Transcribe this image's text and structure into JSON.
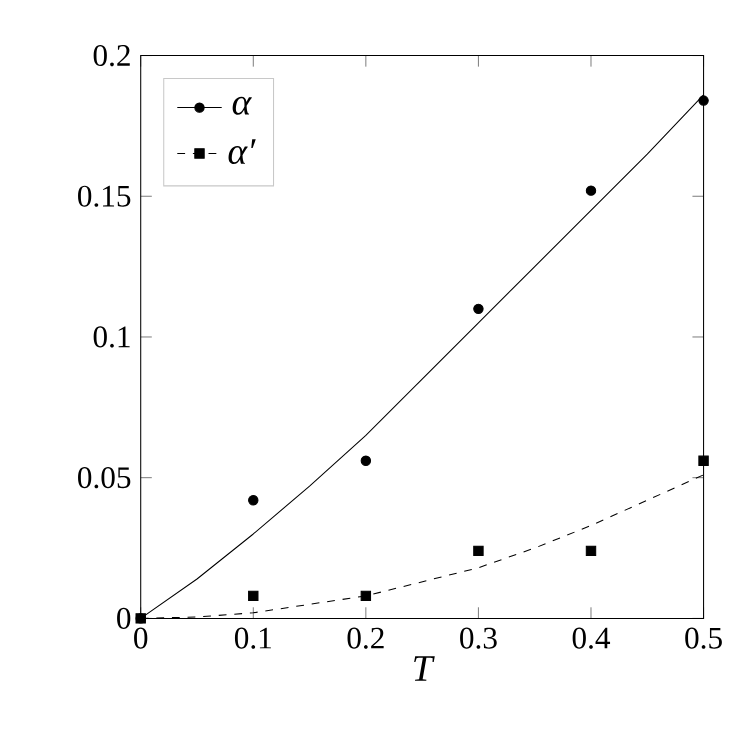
{
  "chart_data": {
    "type": "scatter",
    "xlabel": "T",
    "xlim": [
      0,
      0.5
    ],
    "ylim": [
      0,
      0.2
    ],
    "xticks": [
      0,
      0.1,
      0.2,
      0.3,
      0.4,
      0.5
    ],
    "yticks": [
      0,
      0.05,
      0.1,
      0.15,
      0.2
    ],
    "legend": "top left",
    "grid": false,
    "series": [
      {
        "type": "line",
        "color": "#000000",
        "line_style": "solid",
        "marker": "none",
        "x": [
          0,
          0.05,
          0.1,
          0.15,
          0.2,
          0.25,
          0.3,
          0.35,
          0.4,
          0.45,
          0.5
        ],
        "values": [
          0,
          0.014,
          0.03,
          0.047,
          0.065,
          0.085,
          0.105,
          0.125,
          0.145,
          0.165,
          0.186
        ]
      },
      {
        "type": "line",
        "color": "#000000",
        "line_style": "dashed",
        "marker": "none",
        "x": [
          0,
          0.05,
          0.1,
          0.15,
          0.2,
          0.25,
          0.3,
          0.35,
          0.4,
          0.45,
          0.5
        ],
        "values": [
          0,
          0.0005,
          0.002,
          0.005,
          0.008,
          0.013,
          0.018,
          0.025,
          0.033,
          0.042,
          0.051
        ]
      },
      {
        "name": "α",
        "color": "#000000",
        "marker": "circle",
        "line_style": "solid",
        "x": [
          0,
          0.1,
          0.2,
          0.3,
          0.4,
          0.5
        ],
        "values": [
          0,
          0.042,
          0.056,
          0.11,
          0.152,
          0.184
        ]
      },
      {
        "name": "α′",
        "color": "#000000",
        "marker": "square",
        "line_style": "dashed",
        "x": [
          0,
          0.1,
          0.2,
          0.3,
          0.4,
          0.5
        ],
        "values": [
          0,
          0.008,
          0.008,
          0.024,
          0.024,
          0.056
        ]
      }
    ]
  }
}
